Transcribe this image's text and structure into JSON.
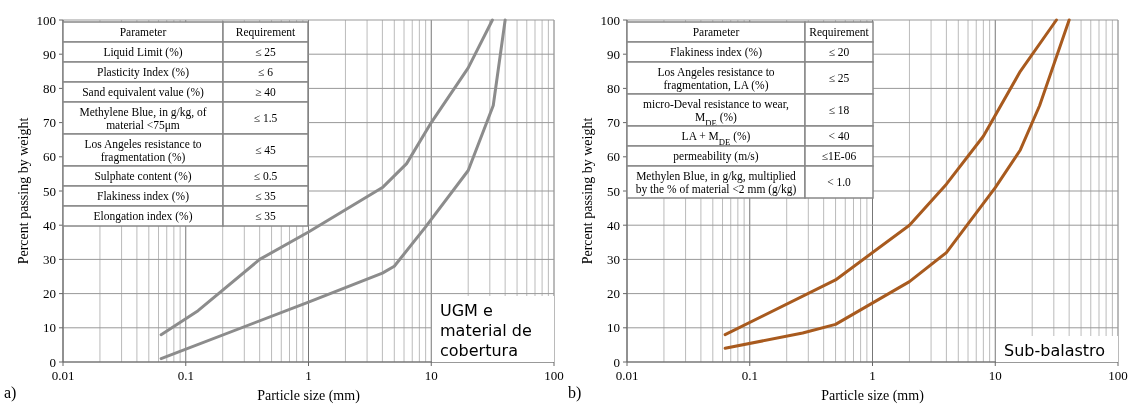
{
  "chart_data": [
    {
      "type": "line",
      "xlabel": "Particle size (mm)",
      "ylabel": "Percent passing by weight",
      "log": "x",
      "grid": true,
      "xlim": [
        0.01,
        100
      ],
      "ylim": [
        0,
        100
      ],
      "xticks": [
        0.01,
        0.1,
        1,
        10,
        100
      ],
      "yticks": [
        0,
        10,
        20,
        30,
        40,
        50,
        60,
        70,
        80,
        90,
        100
      ],
      "series": [
        {
          "color": "#8c8c8c",
          "x": [
            0.063,
            0.126,
            0.4,
            1,
            4,
            6.3,
            10,
            20,
            31.5
          ],
          "values": [
            8,
            15,
            30,
            38,
            51,
            58,
            70,
            86,
            100
          ]
        },
        {
          "color": "#8c8c8c",
          "x": [
            0.063,
            1,
            4,
            5,
            9,
            20,
            32,
            40
          ],
          "values": [
            1,
            17.5,
            26,
            28,
            39.5,
            56,
            75,
            100
          ]
        }
      ],
      "annotations": [
        "a)",
        "UGM e material de cobertura",
        "Parameter",
        "Requirement",
        "Liquid Limit (%)",
        "≤ 25",
        "Plasticity Index (%)",
        "≤ 6",
        "Sand equivalent value (%)",
        "≥ 40",
        "Methylene Blue, in g/kg, of material <75μm",
        "≤ 1.5",
        "Los Angeles resistance to fragmentation (%)",
        "≤ 45",
        "Sulphate content (%)",
        "≤ 0.5",
        "Flakiness index (%)",
        "≤ 35",
        "Elongation index (%)",
        "≤ 35"
      ]
    },
    {
      "type": "line",
      "xlabel": "Particle size (mm)",
      "ylabel": "Percent passing by weight",
      "log": "x",
      "grid": true,
      "xlim": [
        0.01,
        100
      ],
      "ylim": [
        0,
        100
      ],
      "xticks": [
        0.01,
        0.1,
        1,
        10,
        100
      ],
      "yticks": [
        0,
        10,
        20,
        30,
        40,
        50,
        60,
        70,
        80,
        90,
        100
      ],
      "series": [
        {
          "color": "#a85a1e",
          "x": [
            0.063,
            0.5,
            2,
            4,
            8,
            16,
            31.5
          ],
          "values": [
            8,
            24,
            40,
            52,
            66,
            85,
            100
          ]
        },
        {
          "color": "#a85a1e",
          "x": [
            0.063,
            0.27,
            0.5,
            2,
            4,
            10,
            16,
            23,
            40
          ],
          "values": [
            4,
            8.5,
            11,
            23.5,
            32,
            51,
            62,
            75,
            100
          ]
        }
      ],
      "annotations": [
        "b)",
        "Sub-balastro",
        "Parameter",
        "Requirement",
        "Flakiness index (%)",
        "≤ 20",
        "Los Angeles resistance to fragmentation, LA (%)",
        "≤ 25",
        "micro-Deval resistance to wear, M$_{DE}$ (%)",
        "≤ 18",
        "LA + M$_{DE}$ (%)",
        "< 40",
        "permeability (m/s)",
        "≤1E-06",
        "Methylen Blue, in g/kg, multiplied by the % of material <2 mm (g/kg)",
        "< 1.0"
      ]
    }
  ]
}
